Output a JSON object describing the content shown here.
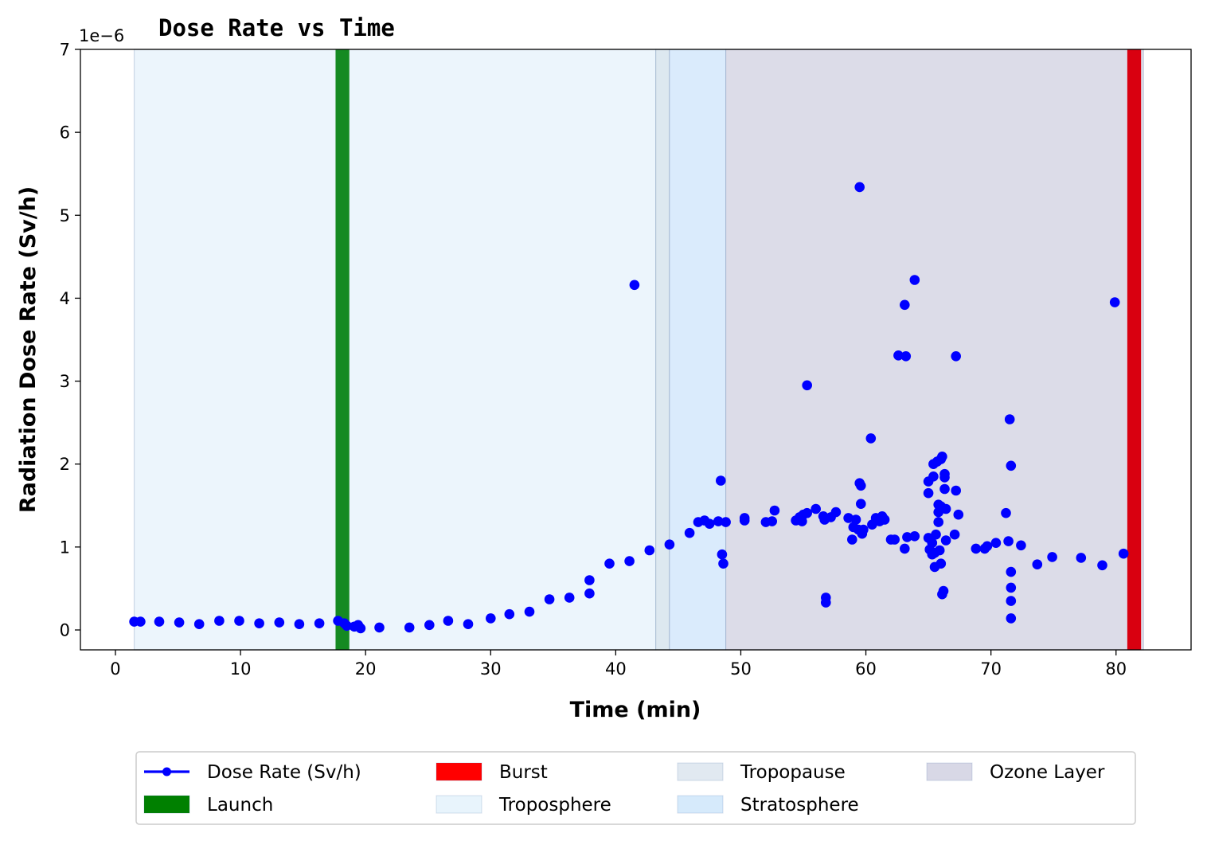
{
  "chart_data": {
    "type": "scatter",
    "title": "Dose Rate vs Time",
    "xlabel": "Time (min)",
    "ylabel": "Radiation Dose Rate (Sv/h)",
    "y_offset_label": "1e−6",
    "xlim": [
      -2.8,
      86.0
    ],
    "ylim": [
      -0.24,
      7.0
    ],
    "x_ticks": [
      0,
      10,
      20,
      30,
      40,
      50,
      60,
      70,
      80
    ],
    "y_ticks": [
      0,
      1,
      2,
      3,
      4,
      5,
      6,
      7
    ],
    "grid": false,
    "legend_placement": "bottom-center",
    "regions": [
      {
        "name": "Troposphere",
        "x0": 1.5,
        "x1": 43.2,
        "color": "#ecf5fc",
        "legend_color": "#e8f4fc"
      },
      {
        "name": "Tropopause",
        "x0": 43.2,
        "x1": 44.3,
        "color": "#dde8f0",
        "legend_color": "#e1e9f1"
      },
      {
        "name": "Stratosphere",
        "x0": 44.3,
        "x1": 48.8,
        "color": "#daebfc",
        "legend_color": "#d6eafb"
      },
      {
        "name": "Ozone Layer",
        "x0": 48.8,
        "x1": 82.2,
        "color": "#dcdce8",
        "legend_color": "#d8d8e6"
      }
    ],
    "events": [
      {
        "name": "Launch",
        "x0": 17.6,
        "x1": 18.7,
        "color": "#158a22",
        "legend_color": "#008000"
      },
      {
        "name": "Burst",
        "x0": 80.9,
        "x1": 82.0,
        "color": "#d90010",
        "legend_color": "#ff0000"
      }
    ],
    "series": [
      {
        "name": "Dose Rate (Sv/h)",
        "color": "#0000ff",
        "points": [
          [
            1.5,
            0.1
          ],
          [
            2.0,
            0.1
          ],
          [
            3.5,
            0.1
          ],
          [
            5.1,
            0.09
          ],
          [
            6.7,
            0.07
          ],
          [
            8.3,
            0.11
          ],
          [
            9.9,
            0.11
          ],
          [
            11.5,
            0.08
          ],
          [
            13.1,
            0.09
          ],
          [
            14.7,
            0.07
          ],
          [
            16.3,
            0.08
          ],
          [
            17.8,
            0.11
          ],
          [
            18.3,
            0.08
          ],
          [
            18.5,
            0.05
          ],
          [
            19.1,
            0.04
          ],
          [
            19.4,
            0.06
          ],
          [
            19.6,
            0.02
          ],
          [
            21.1,
            0.03
          ],
          [
            23.5,
            0.03
          ],
          [
            25.1,
            0.06
          ],
          [
            26.6,
            0.11
          ],
          [
            28.2,
            0.07
          ],
          [
            30.0,
            0.14
          ],
          [
            31.5,
            0.19
          ],
          [
            33.1,
            0.22
          ],
          [
            34.7,
            0.37
          ],
          [
            36.3,
            0.39
          ],
          [
            37.9,
            0.44
          ],
          [
            37.9,
            0.6
          ],
          [
            39.5,
            0.8
          ],
          [
            41.1,
            0.83
          ],
          [
            41.5,
            4.16
          ],
          [
            42.7,
            0.96
          ],
          [
            44.3,
            1.03
          ],
          [
            45.9,
            1.17
          ],
          [
            46.6,
            1.3
          ],
          [
            47.1,
            1.32
          ],
          [
            47.5,
            1.28
          ],
          [
            48.2,
            1.31
          ],
          [
            48.4,
            1.8
          ],
          [
            48.5,
            0.91
          ],
          [
            48.6,
            0.8
          ],
          [
            48.8,
            1.3
          ],
          [
            50.3,
            1.32
          ],
          [
            50.3,
            1.35
          ],
          [
            52.0,
            1.3
          ],
          [
            52.5,
            1.31
          ],
          [
            52.7,
            1.44
          ],
          [
            54.4,
            1.32
          ],
          [
            54.7,
            1.36
          ],
          [
            54.9,
            1.31
          ],
          [
            55.0,
            1.39
          ],
          [
            55.3,
            1.41
          ],
          [
            55.3,
            2.95
          ],
          [
            56.0,
            1.46
          ],
          [
            56.6,
            1.37
          ],
          [
            56.7,
            1.33
          ],
          [
            56.8,
            0.39
          ],
          [
            56.8,
            0.33
          ],
          [
            57.2,
            1.36
          ],
          [
            57.6,
            1.42
          ],
          [
            58.6,
            1.35
          ],
          [
            58.9,
            1.09
          ],
          [
            59.0,
            1.24
          ],
          [
            59.2,
            1.33
          ],
          [
            59.4,
            1.21
          ],
          [
            59.5,
            5.34
          ],
          [
            59.5,
            1.77
          ],
          [
            59.6,
            1.74
          ],
          [
            59.6,
            1.52
          ],
          [
            59.7,
            1.16
          ],
          [
            59.8,
            1.21
          ],
          [
            60.4,
            2.31
          ],
          [
            60.5,
            1.27
          ],
          [
            60.8,
            1.35
          ],
          [
            61.1,
            1.31
          ],
          [
            61.3,
            1.37
          ],
          [
            61.5,
            1.33
          ],
          [
            62.0,
            1.09
          ],
          [
            62.3,
            1.09
          ],
          [
            62.6,
            3.31
          ],
          [
            63.1,
            3.92
          ],
          [
            63.1,
            0.98
          ],
          [
            63.2,
            3.3
          ],
          [
            63.3,
            1.12
          ],
          [
            63.9,
            4.22
          ],
          [
            63.9,
            1.13
          ],
          [
            65.0,
            1.65
          ],
          [
            65.0,
            1.79
          ],
          [
            65.0,
            1.11
          ],
          [
            65.1,
            0.97
          ],
          [
            65.3,
            1.05
          ],
          [
            65.3,
            0.91
          ],
          [
            65.4,
            1.85
          ],
          [
            65.4,
            2.0
          ],
          [
            65.5,
            0.93
          ],
          [
            65.5,
            0.76
          ],
          [
            65.6,
            1.15
          ],
          [
            65.7,
            2.03
          ],
          [
            65.8,
            1.3
          ],
          [
            65.8,
            1.51
          ],
          [
            65.8,
            1.42
          ],
          [
            65.9,
            0.96
          ],
          [
            66.0,
            2.06
          ],
          [
            66.0,
            0.8
          ],
          [
            66.0,
            1.49
          ],
          [
            66.1,
            2.09
          ],
          [
            66.1,
            0.43
          ],
          [
            66.2,
            0.47
          ],
          [
            66.3,
            1.84
          ],
          [
            66.3,
            1.88
          ],
          [
            66.3,
            1.7
          ],
          [
            66.4,
            1.46
          ],
          [
            66.4,
            1.08
          ],
          [
            67.1,
            1.15
          ],
          [
            67.2,
            3.3
          ],
          [
            67.2,
            1.68
          ],
          [
            67.4,
            1.39
          ],
          [
            68.8,
            0.98
          ],
          [
            69.5,
            0.98
          ],
          [
            69.7,
            1.01
          ],
          [
            70.4,
            1.05
          ],
          [
            71.2,
            1.41
          ],
          [
            71.4,
            1.07
          ],
          [
            71.5,
            2.54
          ],
          [
            71.6,
            1.98
          ],
          [
            71.6,
            0.7
          ],
          [
            71.6,
            0.51
          ],
          [
            71.6,
            0.35
          ],
          [
            71.6,
            0.14
          ],
          [
            72.4,
            1.02
          ],
          [
            73.7,
            0.79
          ],
          [
            74.9,
            0.88
          ],
          [
            77.2,
            0.87
          ],
          [
            78.9,
            0.78
          ],
          [
            79.9,
            3.95
          ],
          [
            80.6,
            0.92
          ]
        ]
      }
    ],
    "legend": [
      {
        "label": "Dose Rate (Sv/h)",
        "kind": "line-marker",
        "color": "#0000ff"
      },
      {
        "label": "Launch",
        "kind": "patch",
        "color": "#008000"
      },
      {
        "label": "Burst",
        "kind": "patch",
        "color": "#ff0000"
      },
      {
        "label": "Troposphere",
        "kind": "patch",
        "color": "#e8f4fc"
      },
      {
        "label": "Tropopause",
        "kind": "patch",
        "color": "#e1e9f1"
      },
      {
        "label": "Stratosphere",
        "kind": "patch",
        "color": "#d6eafb"
      },
      {
        "label": "Ozone Layer",
        "kind": "patch",
        "color": "#d8d8e6"
      }
    ]
  }
}
